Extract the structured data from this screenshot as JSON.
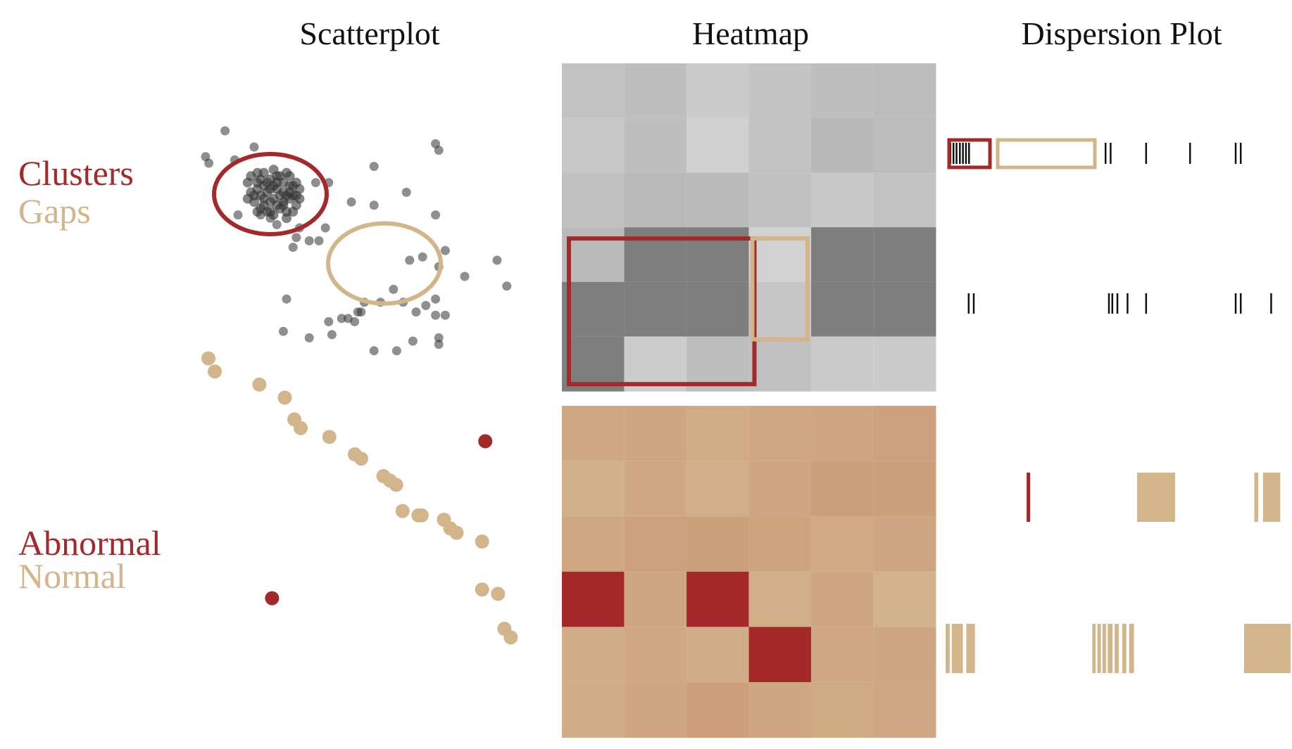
{
  "columns": {
    "scatterplot": "Scatterplot",
    "heatmap": "Heatmap",
    "dispersion": "Dispersion Plot"
  },
  "rows": {
    "top": {
      "primary": "Clusters",
      "secondary": "Gaps"
    },
    "bottom": {
      "primary": "Abnormal",
      "secondary": "Normal"
    }
  },
  "colors": {
    "red": "#a3292b",
    "tan": "#d2b58b",
    "point_gray": "#333333",
    "ink": "#111111"
  },
  "chart_data": [
    {
      "type": "scatter",
      "panel": "clusters-gaps-scatter",
      "xlim": [
        0,
        100
      ],
      "ylim": [
        0,
        100
      ],
      "cluster_center": [
        20,
        60
      ],
      "cluster_points": [
        [
          14,
          61
        ],
        [
          16,
          64
        ],
        [
          18,
          59
        ],
        [
          20,
          65
        ],
        [
          22,
          62
        ],
        [
          24,
          58
        ],
        [
          26,
          63
        ],
        [
          17,
          56
        ],
        [
          21,
          54
        ],
        [
          25,
          55
        ],
        [
          19,
          61
        ],
        [
          23,
          66
        ],
        [
          27,
          60
        ],
        [
          15,
          58
        ],
        [
          28,
          57
        ],
        [
          18,
          67
        ],
        [
          22,
          57
        ],
        [
          26,
          66
        ],
        [
          20,
          58
        ],
        [
          24,
          61
        ],
        [
          16,
          62
        ],
        [
          13,
          64
        ],
        [
          29,
          62
        ],
        [
          21,
          68
        ],
        [
          25,
          53
        ],
        [
          19,
          55
        ],
        [
          23,
          60
        ],
        [
          17,
          65
        ],
        [
          27,
          55
        ],
        [
          14,
          66
        ],
        [
          22,
          64
        ],
        [
          18,
          57
        ],
        [
          26,
          59
        ],
        [
          20,
          62
        ],
        [
          24,
          64
        ],
        [
          16,
          55
        ],
        [
          28,
          64
        ],
        [
          21,
          59
        ],
        [
          25,
          67
        ],
        [
          19,
          64
        ],
        [
          15,
          60
        ],
        [
          23,
          56
        ],
        [
          27,
          63
        ],
        [
          17,
          60
        ],
        [
          22,
          66
        ],
        [
          29,
          59
        ],
        [
          20,
          55
        ],
        [
          24,
          57
        ],
        [
          18,
          63
        ],
        [
          26,
          61
        ],
        [
          13,
          59
        ],
        [
          21,
          63
        ],
        [
          25,
          60
        ],
        [
          16,
          67
        ],
        [
          28,
          60
        ]
      ],
      "outer_points": [
        [
          15,
          75
        ],
        [
          6,
          80
        ],
        [
          0,
          72
        ],
        [
          9,
          71
        ],
        [
          1,
          70
        ],
        [
          34,
          64
        ],
        [
          38,
          64
        ],
        [
          17,
          54
        ],
        [
          20,
          53
        ],
        [
          22,
          51
        ],
        [
          10,
          54
        ],
        [
          35,
          46
        ],
        [
          29,
          50
        ],
        [
          37,
          50
        ],
        [
          28,
          47
        ],
        [
          27,
          44
        ],
        [
          32,
          46
        ],
        [
          45,
          58
        ],
        [
          52,
          57
        ],
        [
          52,
          69
        ],
        [
          62,
          61
        ],
        [
          71,
          54
        ],
        [
          72,
          74
        ],
        [
          71,
          76
        ],
        [
          74,
          43
        ],
        [
          72,
          38
        ],
        [
          67,
          41
        ],
        [
          80,
          35
        ],
        [
          63,
          40
        ],
        [
          90,
          40
        ],
        [
          93,
          32
        ],
        [
          58,
          31
        ],
        [
          61,
          27
        ],
        [
          54,
          27
        ],
        [
          49,
          27
        ],
        [
          48,
          24
        ],
        [
          71,
          28
        ],
        [
          68,
          26
        ],
        [
          74,
          23
        ],
        [
          65,
          24
        ],
        [
          47,
          24
        ],
        [
          44,
          22
        ],
        [
          38,
          21
        ],
        [
          25,
          28
        ],
        [
          46,
          21
        ],
        [
          42,
          22
        ],
        [
          39,
          17
        ],
        [
          32,
          16
        ],
        [
          24,
          18
        ],
        [
          64,
          15
        ],
        [
          72,
          14
        ],
        [
          59,
          12
        ],
        [
          52,
          12
        ],
        [
          72,
          16
        ],
        [
          71,
          23
        ]
      ],
      "gap_center": [
        55,
        39
      ]
    },
    {
      "type": "heatmap",
      "panel": "clusters-gaps-heatmap",
      "rows": 6,
      "cols": 6,
      "values": [
        [
          0.18,
          0.2,
          0.14,
          0.17,
          0.2,
          0.21
        ],
        [
          0.15,
          0.2,
          0.11,
          0.18,
          0.23,
          0.21
        ],
        [
          0.19,
          0.22,
          0.22,
          0.19,
          0.15,
          0.18
        ],
        [
          0.22,
          0.52,
          0.52,
          0.1,
          0.52,
          0.52
        ],
        [
          0.52,
          0.52,
          0.52,
          0.16,
          0.52,
          0.52
        ],
        [
          0.52,
          0.13,
          0.2,
          0.19,
          0.14,
          0.14
        ]
      ]
    },
    {
      "type": "dispersion",
      "panel": "clusters-gaps-dispersion",
      "row1_ticks": [
        0.6,
        1.5,
        2.4,
        3.4,
        4.3,
        5.2,
        6.1,
        46.5,
        48.0,
        58.5,
        71.5,
        85.0,
        86.5
      ],
      "row2_ticks": [
        6.0,
        7.5,
        47.5,
        48.5,
        50.0,
        53.0,
        58.5,
        85.0,
        86.5,
        95.5
      ]
    },
    {
      "type": "scatter",
      "panel": "abnormal-normal-scatter",
      "xlim": [
        0,
        100
      ],
      "ylim": [
        0,
        100
      ],
      "normal": [
        [
          0,
          92
        ],
        [
          2,
          89
        ],
        [
          16,
          86
        ],
        [
          24,
          83
        ],
        [
          27,
          78
        ],
        [
          29,
          76
        ],
        [
          38,
          74
        ],
        [
          46,
          70
        ],
        [
          48,
          69
        ],
        [
          55,
          65
        ],
        [
          57,
          64
        ],
        [
          59,
          63
        ],
        [
          61,
          57
        ],
        [
          66,
          56
        ],
        [
          67,
          56
        ],
        [
          74,
          55
        ],
        [
          76,
          53
        ],
        [
          78,
          52
        ],
        [
          86,
          50
        ],
        [
          86,
          39
        ],
        [
          91,
          38
        ],
        [
          93,
          30
        ],
        [
          95,
          28
        ]
      ],
      "abnormal": [
        [
          87,
          73
        ],
        [
          20,
          37
        ]
      ]
    },
    {
      "type": "heatmap",
      "panel": "abnormal-normal-heatmap",
      "rows": 6,
      "cols": 6,
      "values": [
        [
          0.38,
          0.4,
          0.35,
          0.38,
          0.41,
          0.44
        ],
        [
          0.31,
          0.38,
          0.33,
          0.41,
          0.46,
          0.45
        ],
        [
          0.39,
          0.44,
          0.45,
          0.42,
          0.37,
          0.4
        ],
        [
          1.0,
          0.4,
          1.0,
          0.32,
          0.41,
          0.28
        ],
        [
          0.34,
          0.38,
          0.34,
          1.0,
          0.39,
          0.4
        ],
        [
          0.34,
          0.4,
          0.47,
          0.4,
          0.36,
          0.38
        ]
      ],
      "abnormal_cells": [
        [
          3,
          0
        ],
        [
          3,
          2
        ],
        [
          4,
          3
        ]
      ]
    },
    {
      "type": "dispersion",
      "panel": "abnormal-normal-dispersion",
      "row1_abnormal": [
        24.0
      ],
      "row1_normal": [
        {
          "start": 55.5,
          "end": 66.5
        },
        {
          "start": 89.5,
          "end": 90.6
        },
        {
          "start": 92.0,
          "end": 97.0
        }
      ],
      "row2_normal": [
        {
          "start": 0.0,
          "end": 1.2
        },
        {
          "start": 1.8,
          "end": 5.0
        },
        {
          "start": 6.0,
          "end": 8.5
        },
        {
          "start": 42.5,
          "end": 43.5
        },
        {
          "start": 44.0,
          "end": 45.0
        },
        {
          "start": 45.5,
          "end": 46.5
        },
        {
          "start": 47.0,
          "end": 48.4
        },
        {
          "start": 49.0,
          "end": 50.2
        },
        {
          "start": 51.2,
          "end": 52.4
        },
        {
          "start": 53.2,
          "end": 54.6
        },
        {
          "start": 86.5,
          "end": 100.0
        }
      ]
    }
  ]
}
